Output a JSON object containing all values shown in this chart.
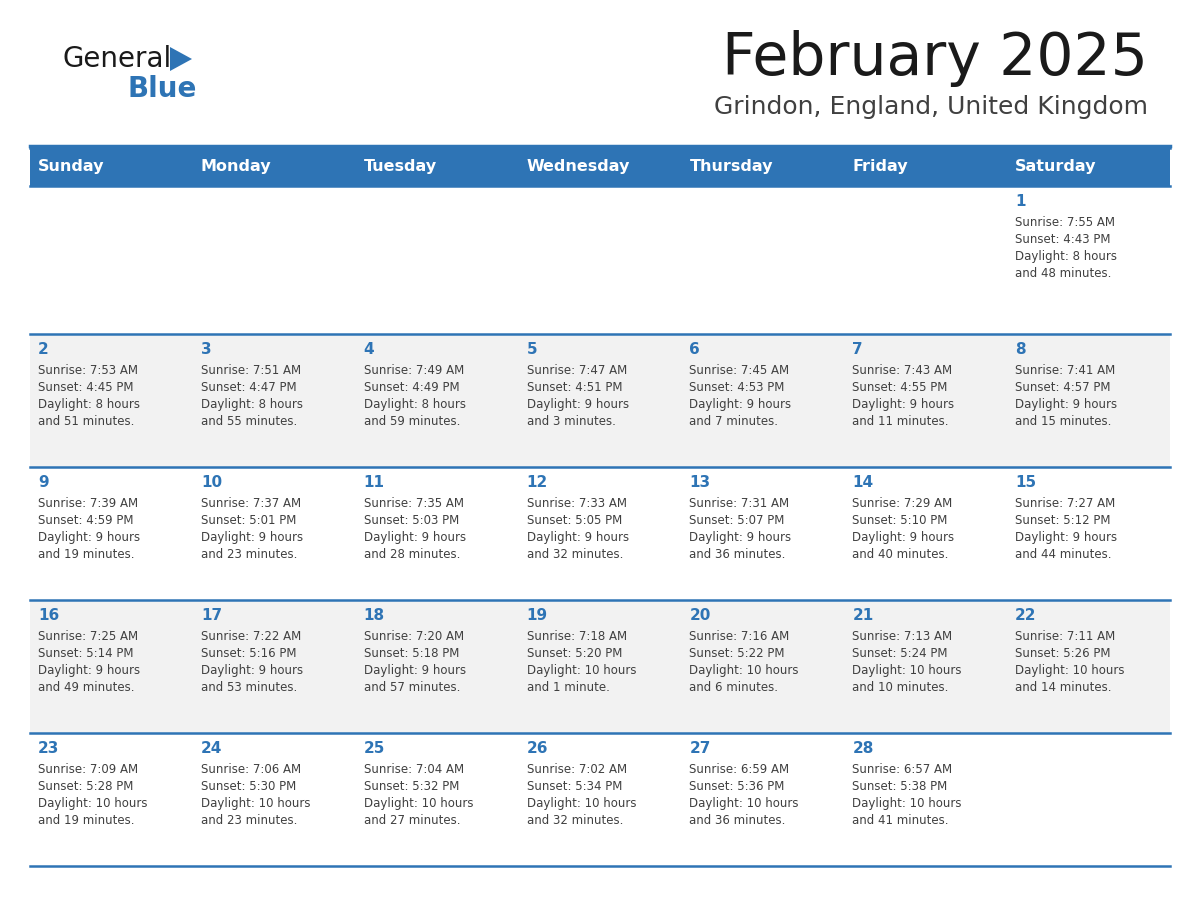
{
  "title": "February 2025",
  "subtitle": "Grindon, England, United Kingdom",
  "days_of_week": [
    "Sunday",
    "Monday",
    "Tuesday",
    "Wednesday",
    "Thursday",
    "Friday",
    "Saturday"
  ],
  "header_bg": "#2E74B5",
  "header_text": "#FFFFFF",
  "row_bg": [
    "#FFFFFF",
    "#F2F2F2",
    "#FFFFFF",
    "#F2F2F2",
    "#FFFFFF"
  ],
  "separator_color": "#2E74B5",
  "day_number_color": "#2E74B5",
  "cell_text_color": "#404040",
  "title_color": "#1a1a1a",
  "subtitle_color": "#404040",
  "logo_general_color": "#1a1a1a",
  "logo_blue_color": "#2E74B5",
  "calendar_data": [
    [
      null,
      null,
      null,
      null,
      null,
      null,
      {
        "day": 1,
        "sunrise": "7:55 AM",
        "sunset": "4:43 PM",
        "daylight": "8 hours\nand 48 minutes."
      }
    ],
    [
      {
        "day": 2,
        "sunrise": "7:53 AM",
        "sunset": "4:45 PM",
        "daylight": "8 hours\nand 51 minutes."
      },
      {
        "day": 3,
        "sunrise": "7:51 AM",
        "sunset": "4:47 PM",
        "daylight": "8 hours\nand 55 minutes."
      },
      {
        "day": 4,
        "sunrise": "7:49 AM",
        "sunset": "4:49 PM",
        "daylight": "8 hours\nand 59 minutes."
      },
      {
        "day": 5,
        "sunrise": "7:47 AM",
        "sunset": "4:51 PM",
        "daylight": "9 hours\nand 3 minutes."
      },
      {
        "day": 6,
        "sunrise": "7:45 AM",
        "sunset": "4:53 PM",
        "daylight": "9 hours\nand 7 minutes."
      },
      {
        "day": 7,
        "sunrise": "7:43 AM",
        "sunset": "4:55 PM",
        "daylight": "9 hours\nand 11 minutes."
      },
      {
        "day": 8,
        "sunrise": "7:41 AM",
        "sunset": "4:57 PM",
        "daylight": "9 hours\nand 15 minutes."
      }
    ],
    [
      {
        "day": 9,
        "sunrise": "7:39 AM",
        "sunset": "4:59 PM",
        "daylight": "9 hours\nand 19 minutes."
      },
      {
        "day": 10,
        "sunrise": "7:37 AM",
        "sunset": "5:01 PM",
        "daylight": "9 hours\nand 23 minutes."
      },
      {
        "day": 11,
        "sunrise": "7:35 AM",
        "sunset": "5:03 PM",
        "daylight": "9 hours\nand 28 minutes."
      },
      {
        "day": 12,
        "sunrise": "7:33 AM",
        "sunset": "5:05 PM",
        "daylight": "9 hours\nand 32 minutes."
      },
      {
        "day": 13,
        "sunrise": "7:31 AM",
        "sunset": "5:07 PM",
        "daylight": "9 hours\nand 36 minutes."
      },
      {
        "day": 14,
        "sunrise": "7:29 AM",
        "sunset": "5:10 PM",
        "daylight": "9 hours\nand 40 minutes."
      },
      {
        "day": 15,
        "sunrise": "7:27 AM",
        "sunset": "5:12 PM",
        "daylight": "9 hours\nand 44 minutes."
      }
    ],
    [
      {
        "day": 16,
        "sunrise": "7:25 AM",
        "sunset": "5:14 PM",
        "daylight": "9 hours\nand 49 minutes."
      },
      {
        "day": 17,
        "sunrise": "7:22 AM",
        "sunset": "5:16 PM",
        "daylight": "9 hours\nand 53 minutes."
      },
      {
        "day": 18,
        "sunrise": "7:20 AM",
        "sunset": "5:18 PM",
        "daylight": "9 hours\nand 57 minutes."
      },
      {
        "day": 19,
        "sunrise": "7:18 AM",
        "sunset": "5:20 PM",
        "daylight": "10 hours\nand 1 minute."
      },
      {
        "day": 20,
        "sunrise": "7:16 AM",
        "sunset": "5:22 PM",
        "daylight": "10 hours\nand 6 minutes."
      },
      {
        "day": 21,
        "sunrise": "7:13 AM",
        "sunset": "5:24 PM",
        "daylight": "10 hours\nand 10 minutes."
      },
      {
        "day": 22,
        "sunrise": "7:11 AM",
        "sunset": "5:26 PM",
        "daylight": "10 hours\nand 14 minutes."
      }
    ],
    [
      {
        "day": 23,
        "sunrise": "7:09 AM",
        "sunset": "5:28 PM",
        "daylight": "10 hours\nand 19 minutes."
      },
      {
        "day": 24,
        "sunrise": "7:06 AM",
        "sunset": "5:30 PM",
        "daylight": "10 hours\nand 23 minutes."
      },
      {
        "day": 25,
        "sunrise": "7:04 AM",
        "sunset": "5:32 PM",
        "daylight": "10 hours\nand 27 minutes."
      },
      {
        "day": 26,
        "sunrise": "7:02 AM",
        "sunset": "5:34 PM",
        "daylight": "10 hours\nand 32 minutes."
      },
      {
        "day": 27,
        "sunrise": "6:59 AM",
        "sunset": "5:36 PM",
        "daylight": "10 hours\nand 36 minutes."
      },
      {
        "day": 28,
        "sunrise": "6:57 AM",
        "sunset": "5:38 PM",
        "daylight": "10 hours\nand 41 minutes."
      },
      null
    ]
  ]
}
